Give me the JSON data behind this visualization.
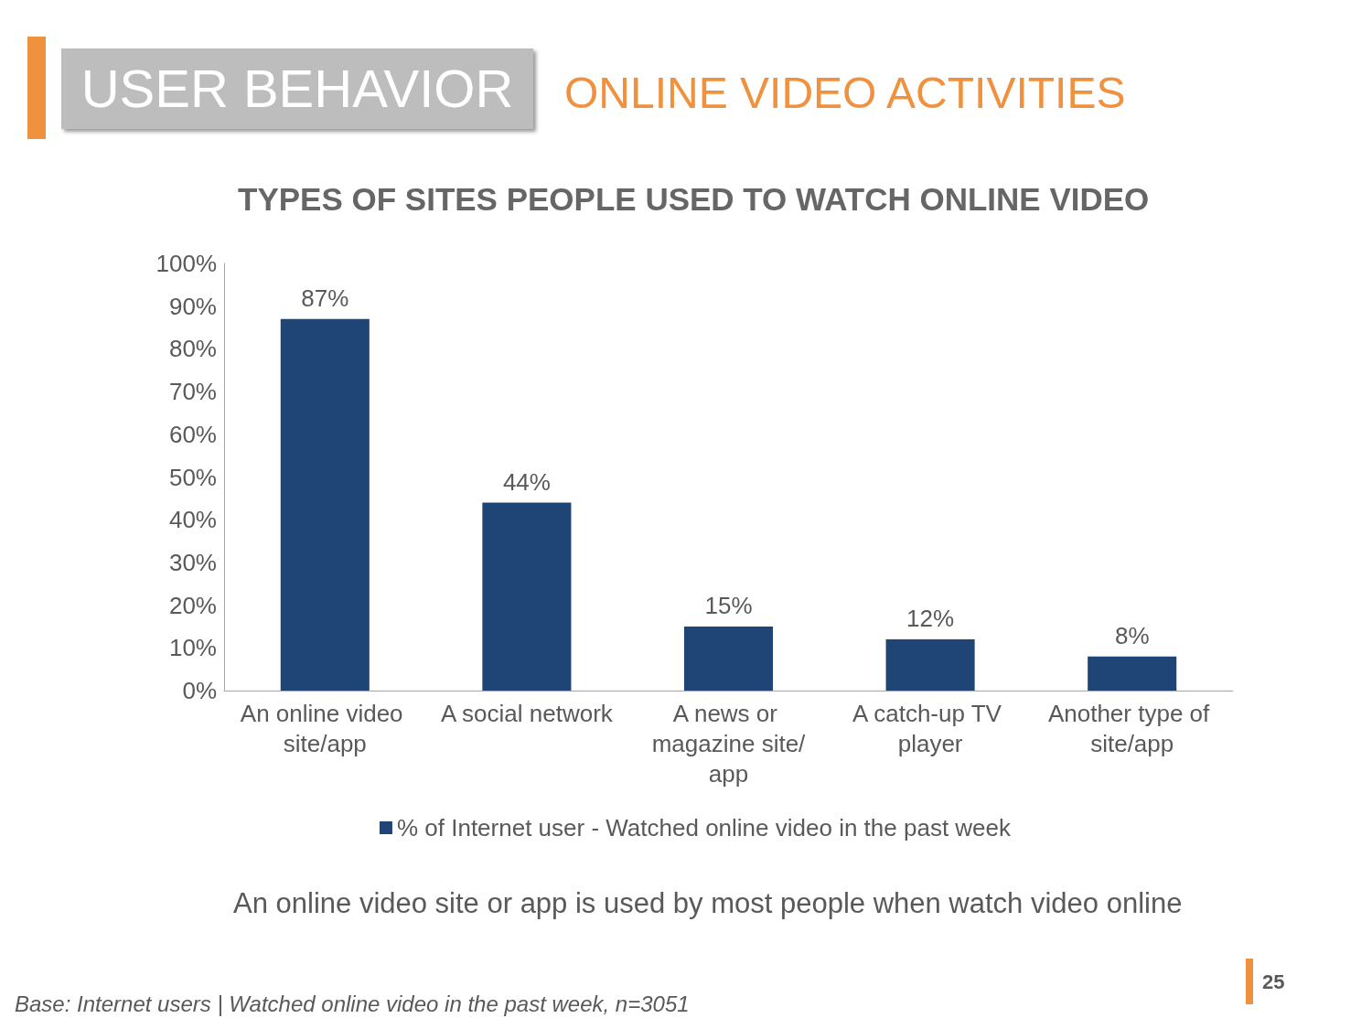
{
  "chart_data": {
    "type": "bar",
    "title": "TYPES OF SITES PEOPLE USED TO WATCH ONLINE VIDEO",
    "categories": [
      "An online video site/app",
      "A social network",
      "A news or magazine site/app",
      "A catch-up TV player",
      "Another type of site/app"
    ],
    "series": [
      {
        "name": "% of Internet user - Watched online video in the past week",
        "color": "#1f4577",
        "values": [
          87,
          44,
          15,
          12,
          8
        ],
        "value_labels": [
          "87%",
          "44%",
          "15%",
          "12%",
          "8%"
        ]
      }
    ],
    "ylim": [
      0,
      100
    ],
    "yticks": [
      {
        "value": 0,
        "label": "0%"
      },
      {
        "value": 10,
        "label": "10%"
      },
      {
        "value": 20,
        "label": "20%"
      },
      {
        "value": 30,
        "label": "30%"
      },
      {
        "value": 40,
        "label": "40%"
      },
      {
        "value": 50,
        "label": "50%"
      },
      {
        "value": 60,
        "label": "60%"
      },
      {
        "value": 70,
        "label": "70%"
      },
      {
        "value": 80,
        "label": "80%"
      },
      {
        "value": 90,
        "label": "90%"
      },
      {
        "value": 100,
        "label": "100%"
      }
    ],
    "grid": false,
    "legend": "bottom",
    "annotations": [
      "USER BEHAVIOR",
      "ONLINE VIDEO ACTIVITIES",
      "An online video site or app is used by most people when watch video online",
      "Base: Internet users | Watched online video in the past week, n=3051",
      "25"
    ]
  }
}
